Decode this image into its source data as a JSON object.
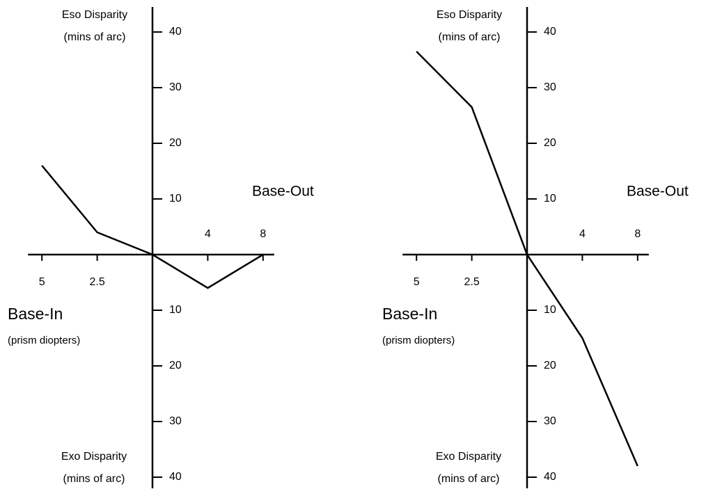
{
  "chart_data": [
    {
      "type": "line",
      "y_top_label": [
        "Eso Disparity",
        "(mins of arc)"
      ],
      "y_bottom_label": [
        "Exo Disparity",
        "(mins of arc)"
      ],
      "x_right_label": "Base-Out",
      "x_left_label": [
        "Base-In",
        "(prism diopters)"
      ],
      "categories": [
        "5",
        "2.5",
        null,
        "4",
        "8"
      ],
      "values": [
        16,
        4,
        0,
        -6,
        0
      ],
      "color": "#000000",
      "ylim": [
        -42,
        44.5
      ],
      "yticks": [
        {
          "value": -40,
          "label": "40"
        },
        {
          "value": -30,
          "label": "30"
        },
        {
          "value": -20,
          "label": "20"
        },
        {
          "value": -10,
          "label": "10"
        },
        10,
        20,
        30,
        40
      ]
    },
    {
      "type": "line",
      "y_top_label": [
        "Eso Disparity",
        "(mins of arc)"
      ],
      "y_bottom_label": [
        "Exo Disparity",
        "(mins of arc)"
      ],
      "x_right_label": "Base-Out",
      "x_left_label": [
        "Base-In",
        "(prism diopters)"
      ],
      "categories": [
        "5",
        "2.5",
        null,
        "4",
        "8"
      ],
      "values": [
        36.5,
        26.5,
        0,
        -15,
        -38
      ],
      "color": "#000000",
      "ylim": [
        -42,
        44.5
      ],
      "yticks": [
        {
          "value": -40,
          "label": "40"
        },
        {
          "value": -30,
          "label": "30"
        },
        {
          "value": -20,
          "label": "20"
        },
        {
          "value": -10,
          "label": "10"
        },
        10,
        20,
        30,
        40
      ]
    }
  ]
}
